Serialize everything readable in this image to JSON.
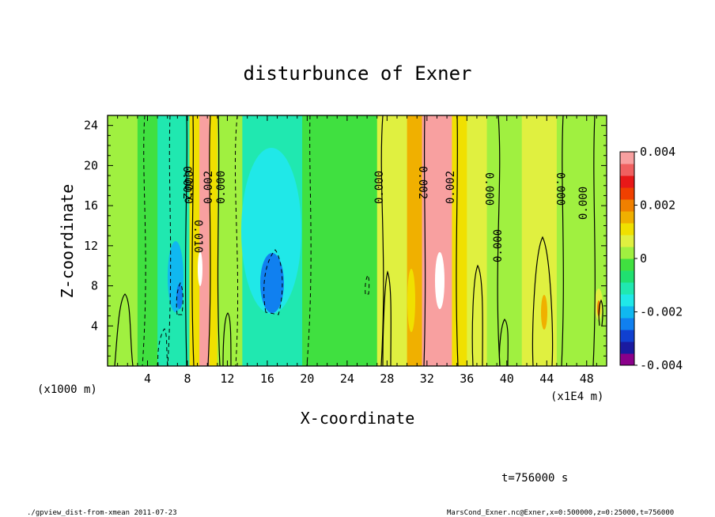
{
  "chart_data": {
    "type": "heatmap",
    "title": "disturbunce of Exner",
    "xlabel": "X-coordinate",
    "ylabel": "Z-coordinate",
    "x_unit": "(x1E4 m)",
    "y_unit": "(x1000 m)",
    "xlim": [
      0,
      50
    ],
    "ylim": [
      0,
      25
    ],
    "x_ticks": [
      "4",
      "8",
      "12",
      "16",
      "20",
      "24",
      "28",
      "32",
      "36",
      "40",
      "44",
      "48"
    ],
    "y_ticks": [
      "4",
      "8",
      "12",
      "16",
      "20",
      "24"
    ],
    "colorbar": {
      "range": [
        -0.004,
        0.004
      ],
      "tick_labels": [
        "0.004",
        "0.002",
        "0",
        "-0.002",
        "-0.004"
      ],
      "colors": [
        "#8a008a",
        "#1a1aa0",
        "#1040d0",
        "#1080f0",
        "#10b8f0",
        "#20e8e8",
        "#20e8b0",
        "#20e070",
        "#40e040",
        "#a0f040",
        "#e0f040",
        "#f0e000",
        "#f0b000",
        "#f08000",
        "#f04000",
        "#e81818",
        "#f06060",
        "#f8a0a0"
      ]
    },
    "bands": [
      {
        "x": [
          0,
          3
        ],
        "value": 0.0002
      },
      {
        "x": [
          3,
          5
        ],
        "value": -0.0004
      },
      {
        "x": [
          5,
          8.2
        ],
        "value": -0.0012
      },
      {
        "x": [
          8.2,
          9.2
        ],
        "value": 0.0012
      },
      {
        "x": [
          9.2,
          10.2
        ],
        "value": 0.0036
      },
      {
        "x": [
          10.2,
          11
        ],
        "value": 0.0012
      },
      {
        "x": [
          11,
          13.5
        ],
        "value": 0.0002
      },
      {
        "x": [
          13.5,
          19.5
        ],
        "value": -0.0012
      },
      {
        "x": [
          19.5,
          27
        ],
        "value": -0.0002
      },
      {
        "x": [
          27,
          30
        ],
        "value": 0.0006
      },
      {
        "x": [
          30,
          31.5
        ],
        "value": 0.0014
      },
      {
        "x": [
          31.5,
          34.5
        ],
        "value": 0.0036
      },
      {
        "x": [
          34.5,
          36
        ],
        "value": 0.0012
      },
      {
        "x": [
          36,
          38
        ],
        "value": 0.0006
      },
      {
        "x": [
          38,
          41.5
        ],
        "value": 0.0002
      },
      {
        "x": [
          41.5,
          45
        ],
        "value": 0.0008
      },
      {
        "x": [
          45,
          50
        ],
        "value": 0.0004
      }
    ],
    "contour_labels": [
      "0.000",
      "0.002",
      "0.002",
      "0.000",
      "0.010",
      "0.000",
      "0.002",
      "0.002",
      "0.000",
      "0.000",
      "0.000",
      "0.000"
    ]
  },
  "annotations": {
    "time": "t=756000 s",
    "footer_left": "./gpview_dist-from-xmean  2011-07-23",
    "footer_right": "MarsCond_Exner.nc@Exner,x=0:500000,z=0:25000,t=756000"
  }
}
